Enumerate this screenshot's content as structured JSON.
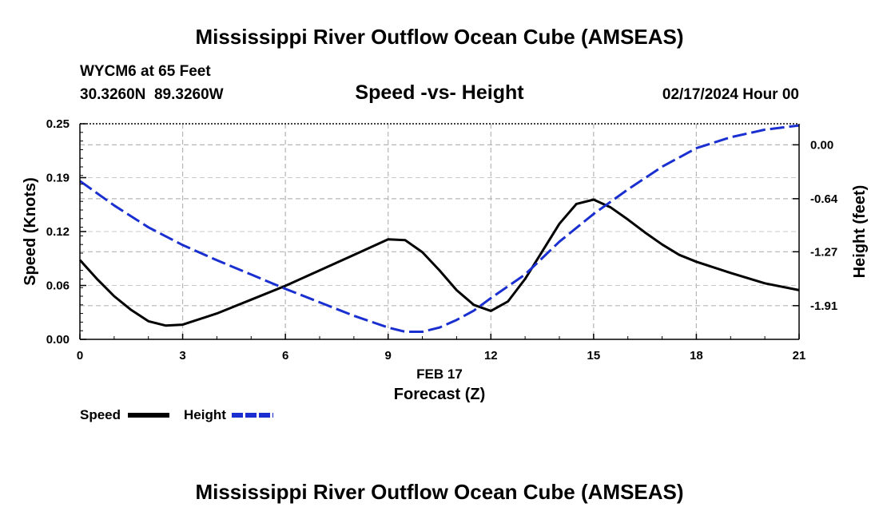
{
  "header": {
    "title": "Mississippi River Outflow Ocean Cube (AMSEAS)",
    "station": "WYCM6 at 65 Feet",
    "coords": "30.3260N  89.3260W",
    "plot_title": "Speed -vs- Height",
    "date": "02/17/2024 Hour 00"
  },
  "footer": {
    "title": "Mississippi River Outflow Ocean Cube (AMSEAS)"
  },
  "chart_data": {
    "type": "line",
    "title": "Speed -vs- Height",
    "xlabel_date": "FEB 17",
    "xlabel": "Forecast (Z)",
    "ylabel": "Speed (Knots)",
    "y2label": "Height (feet)",
    "xlim": [
      0,
      21
    ],
    "ylim": [
      0,
      0.25
    ],
    "y2lim": [
      -2.31,
      0.25
    ],
    "x_ticks": [
      0,
      3,
      6,
      9,
      12,
      15,
      18,
      21
    ],
    "x_tick_labels": [
      "0",
      "3",
      "6",
      "9",
      "12",
      "15",
      "18",
      "21"
    ],
    "y_ticks": [
      0,
      0.0625,
      0.125,
      0.1875,
      0.25
    ],
    "y_tick_labels": [
      "0.00",
      "0.06",
      "0.12",
      "0.19",
      "0.25"
    ],
    "y2_ticks": [
      0.0,
      -0.64,
      -1.27,
      -1.91
    ],
    "y2_tick_labels": [
      "0.00",
      "-0.64",
      "-1.27",
      "-1.91"
    ],
    "grid": true,
    "legend": {
      "position": "bottom-left",
      "speed_label": "Speed",
      "height_label": "Height"
    },
    "series": [
      {
        "name": "Speed",
        "axis": "left",
        "color": "#000000",
        "style": "solid",
        "x": [
          0,
          0.5,
          1,
          1.5,
          2,
          2.5,
          3,
          4,
          5,
          6,
          7,
          8,
          9,
          9.5,
          10,
          10.5,
          11,
          11.5,
          12,
          12.5,
          13,
          13.5,
          14,
          14.5,
          15,
          15.5,
          16,
          16.5,
          17,
          17.5,
          18,
          19,
          20,
          21
        ],
        "values": [
          0.092,
          0.07,
          0.05,
          0.034,
          0.021,
          0.016,
          0.017,
          0.03,
          0.046,
          0.062,
          0.08,
          0.098,
          0.116,
          0.115,
          0.101,
          0.08,
          0.057,
          0.04,
          0.033,
          0.044,
          0.07,
          0.102,
          0.134,
          0.157,
          0.162,
          0.153,
          0.139,
          0.124,
          0.11,
          0.098,
          0.09,
          0.077,
          0.065,
          0.057
        ]
      },
      {
        "name": "Height",
        "axis": "right",
        "color": "#1a2fd0",
        "style": "dashed",
        "x": [
          0,
          1,
          2,
          3,
          4,
          5,
          6,
          7,
          8,
          9,
          9.5,
          10,
          10.5,
          11,
          11.5,
          12,
          13,
          14,
          15,
          16,
          17,
          18,
          19,
          20,
          21
        ],
        "values": [
          -0.43,
          -0.72,
          -0.98,
          -1.19,
          -1.37,
          -1.54,
          -1.71,
          -1.87,
          -2.03,
          -2.17,
          -2.22,
          -2.22,
          -2.17,
          -2.08,
          -1.97,
          -1.82,
          -1.54,
          -1.15,
          -0.82,
          -0.53,
          -0.26,
          -0.04,
          0.09,
          0.18,
          0.23
        ]
      }
    ]
  }
}
